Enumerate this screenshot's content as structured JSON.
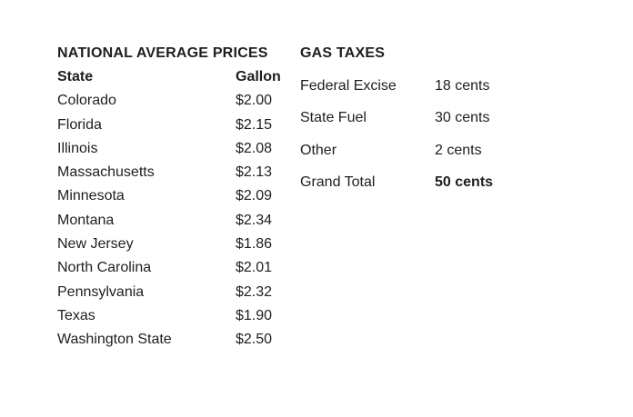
{
  "prices": {
    "title": "NATIONAL AVERAGE PRICES",
    "header": {
      "state": "State",
      "price": "Gallon"
    },
    "rows": [
      {
        "state": "Colorado",
        "price": "$2.00"
      },
      {
        "state": "Florida",
        "price": "$2.15"
      },
      {
        "state": "Illinois",
        "price": "$2.08"
      },
      {
        "state": "Massachusetts",
        "price": "$2.13"
      },
      {
        "state": "Minnesota",
        "price": "$2.09"
      },
      {
        "state": "Montana",
        "price": "$2.34"
      },
      {
        "state": "New Jersey",
        "price": "$1.86"
      },
      {
        "state": "North Carolina",
        "price": "$2.01"
      },
      {
        "state": "Pennsylvania",
        "price": "$2.32"
      },
      {
        "state": "Texas",
        "price": "$1.90"
      },
      {
        "state": "Washington State",
        "price": "$2.50"
      }
    ]
  },
  "taxes": {
    "title": "GAS TAXES",
    "rows": [
      {
        "name": "Federal Excise",
        "amount": "18 cents"
      },
      {
        "name": "State Fuel",
        "amount": "30 cents"
      },
      {
        "name": "Other",
        "amount": "2 cents"
      },
      {
        "name": "Grand Total",
        "amount": "50 cents"
      }
    ]
  }
}
